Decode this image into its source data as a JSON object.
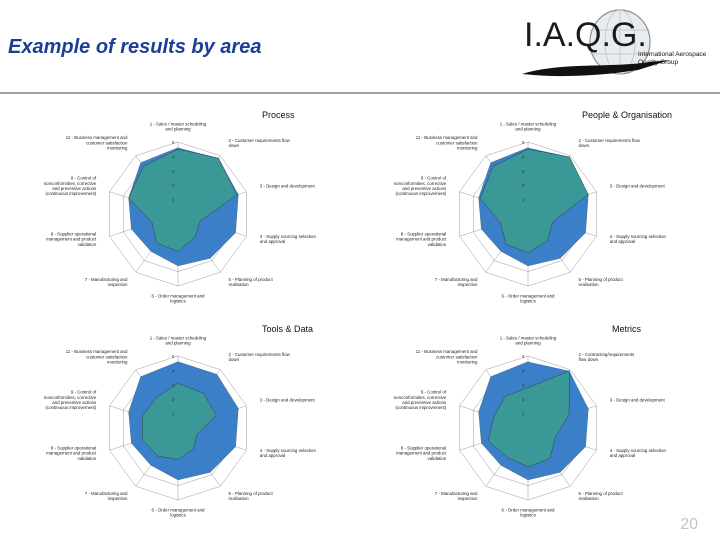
{
  "slide": {
    "title": "Example of results by area",
    "page_number": "20"
  },
  "logo": {
    "letters": "I.A.Q.G.",
    "line1": "International Aerospace",
    "line2": "Quality Group"
  },
  "colors": {
    "title": "#1c3f94",
    "target_fill": "#f2ee2e",
    "result_fill": "#3a9a95",
    "overshoot_fill": "#3c7fc9",
    "grid": "#9a9a9a"
  },
  "chart_data": [
    {
      "type": "radar",
      "title": "Process",
      "axes": [
        "1 - Sales / master scheduling and planning",
        "2 - Customer requirements flow down",
        "3 - Design and development",
        "4 - Supply sourcing selection and approval",
        "5 - Planning of product realisation",
        "6 - Order management and logistics",
        "7 - Manufacturing and inspection",
        "8 - Supplier operational management and product validation",
        "9 - Control of nonconformities, corrective and preventive actions (continuous improvement)",
        "11 - Business management and customer satisfaction monitoring"
      ],
      "ticks": [
        "1",
        "2",
        "3",
        "4",
        "5"
      ],
      "rlim": [
        0,
        5
      ],
      "series": [
        {
          "values": [
            4.6,
            4.6,
            4.4,
            4.2,
            3.8,
            3.6,
            3.2,
            3.4,
            3.6,
            4.4
          ]
        },
        {
          "values": [
            4.5,
            4.8,
            4.3,
            1.6,
            2.0,
            2.6,
            2.5,
            1.9,
            3.6,
            4.1
          ]
        }
      ]
    },
    {
      "type": "radar",
      "title": "People & Organisation",
      "axes": [
        "1 - Sales / master scheduling and planning",
        "2 - Customer requirements flow down",
        "3 - Design and development",
        "4 - Supply sourcing selection and approval",
        "5 - Planning of product realisation",
        "6 - Order management and logistics",
        "7 - Manufacturing and inspection",
        "8 - Supplier operational management and product validation",
        "9 - Control of nonconformities, corrective and preventive actions (continuous improvement)",
        "11 - Business management and customer satisfaction monitoring"
      ],
      "ticks": [
        "1",
        "2",
        "3",
        "4",
        "5"
      ],
      "rlim": [
        0,
        5
      ],
      "series": [
        {
          "values": [
            4.6,
            4.6,
            4.4,
            4.2,
            3.8,
            3.6,
            3.2,
            3.4,
            3.6,
            4.4
          ]
        },
        {
          "values": [
            4.5,
            4.9,
            4.4,
            1.8,
            2.3,
            2.7,
            2.6,
            2.0,
            3.5,
            4.1
          ]
        }
      ]
    },
    {
      "type": "radar",
      "title": "Tools & Data",
      "axes": [
        "1 - Sales / master scheduling and planning",
        "2 - Customer requirements flow down",
        "3 - Design and development",
        "4 - Supply sourcing selection and approval",
        "5 - Planning of product realisation",
        "6 - Order management and logistics",
        "7 - Manufacturing and inspection",
        "8 - Supplier operational management and product validation",
        "9 - Control of nonconformities, corrective and preventive actions (continuous improvement)",
        "11 - Business management and customer satisfaction monitoring"
      ],
      "ticks": [
        "1",
        "2",
        "3",
        "4",
        "5"
      ],
      "rlim": [
        0,
        5
      ],
      "series": [
        {
          "values": [
            4.6,
            4.6,
            4.4,
            4.2,
            3.8,
            3.6,
            3.2,
            3.4,
            3.6,
            4.4
          ]
        },
        {
          "values": [
            3.1,
            3.0,
            2.8,
            1.4,
            1.8,
            2.2,
            2.4,
            2.6,
            2.6,
            2.6
          ]
        }
      ]
    },
    {
      "type": "radar",
      "title": "Metrics",
      "axes": [
        "1 - Sales / master scheduling and planning",
        "2 - Contracting/requirements flow down",
        "3 - Design and development",
        "4 - Supply sourcing selection and approval",
        "5 - Planning of product realisation",
        "6 - Order management and logistics",
        "7 - Manufacturing and inspection",
        "8 - Supplier operational management and product validation",
        "9 - Control of nonconformities, corrective and preventive actions (continuous improvement)",
        "11 - Business management and customer satisfaction monitoring"
      ],
      "ticks": [
        "1",
        "2",
        "3",
        "4",
        "5"
      ],
      "rlim": [
        0,
        5
      ],
      "series": [
        {
          "values": [
            4.6,
            4.6,
            4.4,
            4.2,
            3.8,
            3.6,
            3.2,
            3.4,
            3.6,
            4.4
          ]
        },
        {
          "values": [
            2.8,
            4.9,
            3.0,
            2.0,
            2.6,
            2.7,
            2.5,
            2.9,
            2.5,
            2.7
          ]
        }
      ]
    }
  ]
}
